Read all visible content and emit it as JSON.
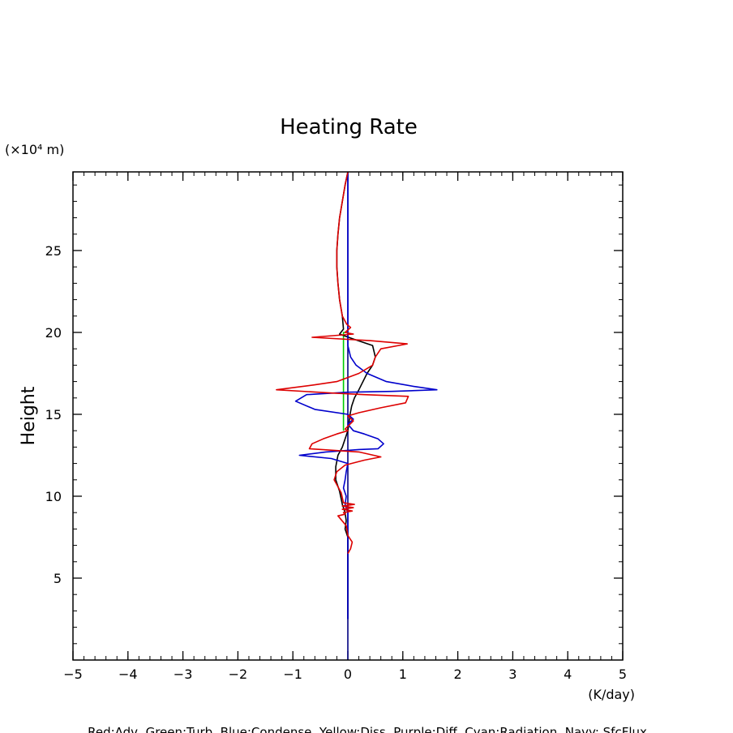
{
  "chart_data": {
    "type": "line",
    "title": "Heating Rate",
    "ylabel": "Height",
    "yunit": "(×10⁴ m)",
    "xunit": "(K/day)",
    "xlim": [
      -5,
      5
    ],
    "ylim": [
      0,
      29.8
    ],
    "xticks": [
      -5,
      -4,
      -3,
      -2,
      -1,
      0,
      1,
      2,
      3,
      4,
      5
    ],
    "xtick_labels": [
      "−5",
      "−4",
      "−3",
      "−2",
      "−1",
      "0",
      "1",
      "2",
      "3",
      "4",
      "5"
    ],
    "yticks": [
      5,
      10,
      15,
      20,
      25
    ],
    "ytick_labels": [
      "5",
      "10",
      "15",
      "20",
      "25"
    ],
    "x_minor_step": 0.2,
    "y_minor_step": 1,
    "grid": false,
    "legend_text": "Red:Adv, Green:Turb, Blue:Condense, Yellow:Diss, Purple:Diff, Cyan:Radiation, Navy: SfcFlux",
    "series": [
      {
        "name": "Navy",
        "color": "#000080",
        "points": [
          [
            0,
            0
          ],
          [
            0,
            29.8
          ]
        ]
      },
      {
        "name": "Green",
        "color": "#00cc00",
        "points": [
          [
            -0.08,
            14.0
          ],
          [
            -0.08,
            20.0
          ],
          [
            -0.02,
            20.0
          ]
        ]
      },
      {
        "name": "Black",
        "color": "#000000",
        "points": [
          [
            0.0,
            2.5
          ],
          [
            0.0,
            7.5
          ],
          [
            -0.05,
            8.0
          ],
          [
            -0.03,
            8.5
          ],
          [
            -0.05,
            9.0
          ],
          [
            -0.1,
            9.5
          ],
          [
            -0.15,
            10.3
          ],
          [
            -0.22,
            11.0
          ],
          [
            -0.22,
            11.8
          ],
          [
            -0.18,
            12.5
          ],
          [
            -0.1,
            13.0
          ],
          [
            -0.05,
            13.5
          ],
          [
            0.0,
            14.0
          ],
          [
            0.02,
            14.5
          ],
          [
            0.04,
            15.0
          ],
          [
            0.07,
            15.5
          ],
          [
            0.12,
            16.0
          ],
          [
            0.2,
            16.5
          ],
          [
            0.35,
            17.5
          ],
          [
            0.45,
            18.0
          ],
          [
            0.5,
            18.5
          ],
          [
            0.45,
            19.2
          ],
          [
            0.1,
            19.6
          ],
          [
            -0.15,
            19.9
          ],
          [
            -0.08,
            20.2
          ],
          [
            -0.1,
            21.0
          ],
          [
            -0.15,
            22.0
          ],
          [
            -0.18,
            23.0
          ],
          [
            -0.2,
            24.0
          ],
          [
            -0.2,
            25.0
          ],
          [
            -0.18,
            26.0
          ],
          [
            -0.15,
            27.0
          ],
          [
            -0.1,
            28.0
          ],
          [
            -0.05,
            29.0
          ],
          [
            0.0,
            29.8
          ]
        ]
      },
      {
        "name": "Blue",
        "color": "#0000cc",
        "points": [
          [
            0.0,
            2.5
          ],
          [
            0.0,
            9.0
          ],
          [
            -0.05,
            9.5
          ],
          [
            -0.03,
            10.0
          ],
          [
            -0.08,
            10.5
          ],
          [
            -0.05,
            11.0
          ],
          [
            -0.03,
            11.5
          ],
          [
            0.0,
            12.0
          ],
          [
            -0.3,
            12.3
          ],
          [
            -0.88,
            12.5
          ],
          [
            -0.4,
            12.7
          ],
          [
            0.2,
            12.85
          ],
          [
            0.55,
            12.9
          ],
          [
            0.65,
            13.2
          ],
          [
            0.55,
            13.5
          ],
          [
            0.3,
            13.8
          ],
          [
            0.1,
            14.0
          ],
          [
            0.0,
            14.4
          ],
          [
            0.1,
            14.7
          ],
          [
            0.0,
            15.0
          ],
          [
            -0.6,
            15.3
          ],
          [
            -0.95,
            15.8
          ],
          [
            -0.75,
            16.2
          ],
          [
            0.0,
            16.35
          ],
          [
            0.8,
            16.4
          ],
          [
            1.62,
            16.5
          ],
          [
            1.2,
            16.7
          ],
          [
            0.7,
            17.0
          ],
          [
            0.35,
            17.5
          ],
          [
            0.15,
            18.0
          ],
          [
            0.05,
            18.5
          ],
          [
            0.0,
            19.2
          ],
          [
            0.0,
            29.8
          ]
        ]
      },
      {
        "name": "Red",
        "color": "#dd0000",
        "points": [
          [
            0.0,
            6.5
          ],
          [
            0.05,
            6.8
          ],
          [
            0.08,
            7.2
          ],
          [
            0.0,
            7.6
          ],
          [
            -0.03,
            8.2
          ],
          [
            -0.18,
            8.8
          ],
          [
            -0.05,
            8.9
          ],
          [
            -0.08,
            9.0
          ],
          [
            0.08,
            9.1
          ],
          [
            -0.1,
            9.2
          ],
          [
            0.1,
            9.3
          ],
          [
            -0.1,
            9.4
          ],
          [
            0.12,
            9.5
          ],
          [
            -0.08,
            9.6
          ],
          [
            -0.12,
            10.2
          ],
          [
            -0.2,
            10.7
          ],
          [
            -0.25,
            11.0
          ],
          [
            -0.2,
            11.5
          ],
          [
            -0.05,
            11.9
          ],
          [
            0.3,
            12.2
          ],
          [
            0.6,
            12.4
          ],
          [
            0.2,
            12.7
          ],
          [
            -0.7,
            12.9
          ],
          [
            -0.65,
            13.2
          ],
          [
            -0.45,
            13.5
          ],
          [
            -0.2,
            13.8
          ],
          [
            0.0,
            14.0
          ],
          [
            -0.05,
            14.1
          ],
          [
            0.1,
            14.6
          ],
          [
            0.0,
            14.9
          ],
          [
            0.2,
            15.1
          ],
          [
            0.6,
            15.4
          ],
          [
            1.05,
            15.7
          ],
          [
            1.1,
            16.1
          ],
          [
            0.3,
            16.2
          ],
          [
            -0.3,
            16.3
          ],
          [
            -1.3,
            16.5
          ],
          [
            -0.6,
            16.8
          ],
          [
            -0.2,
            17.0
          ],
          [
            0.2,
            17.5
          ],
          [
            0.45,
            18.0
          ],
          [
            0.5,
            18.5
          ],
          [
            0.6,
            19.0
          ],
          [
            1.08,
            19.3
          ],
          [
            0.4,
            19.5
          ],
          [
            -0.65,
            19.7
          ],
          [
            0.1,
            19.9
          ],
          [
            -0.05,
            20.0
          ],
          [
            0.05,
            20.3
          ],
          [
            -0.02,
            20.5
          ],
          [
            -0.1,
            21.0
          ],
          [
            -0.15,
            22.0
          ],
          [
            -0.18,
            23.0
          ],
          [
            -0.2,
            24.0
          ],
          [
            -0.2,
            25.0
          ],
          [
            -0.18,
            26.0
          ],
          [
            -0.15,
            27.0
          ],
          [
            -0.1,
            28.0
          ],
          [
            -0.05,
            29.0
          ],
          [
            0.0,
            29.8
          ]
        ]
      }
    ]
  }
}
